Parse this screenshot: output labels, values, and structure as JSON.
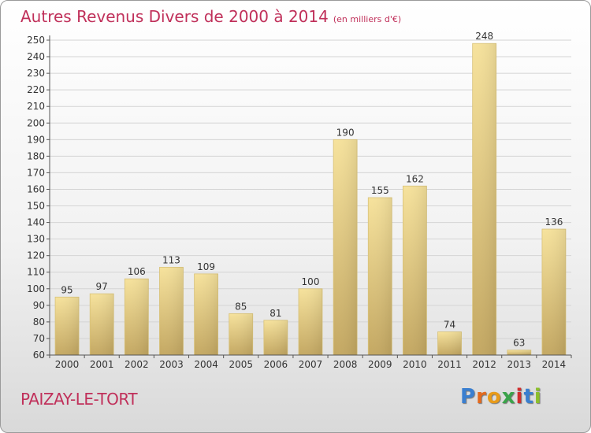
{
  "header": {
    "title": "Autres Revenus Divers de 2000 à 2014",
    "subtitle": "(en milliers d'€)"
  },
  "footer": {
    "town": "PAIZAY-LE-TORT",
    "brand": "Proxiti"
  },
  "colors": {
    "title": "#c0305a",
    "bar_light": "#f6e29c",
    "bar_dark": "#c4a862"
  },
  "chart_data": {
    "type": "bar",
    "title": "Autres Revenus Divers de 2000 à 2014",
    "subtitle": "(en milliers d'€)",
    "categories": [
      "2000",
      "2001",
      "2002",
      "2003",
      "2004",
      "2005",
      "2006",
      "2007",
      "2008",
      "2009",
      "2010",
      "2011",
      "2012",
      "2013",
      "2014"
    ],
    "values": [
      95,
      97,
      106,
      113,
      109,
      85,
      81,
      100,
      190,
      155,
      162,
      74,
      248,
      63,
      136
    ],
    "ylim": [
      60,
      250
    ],
    "yticks": [
      60,
      70,
      80,
      90,
      100,
      110,
      120,
      130,
      140,
      150,
      160,
      170,
      180,
      190,
      200,
      210,
      220,
      230,
      240,
      250
    ],
    "grid": true,
    "xlabel": "",
    "ylabel": ""
  }
}
